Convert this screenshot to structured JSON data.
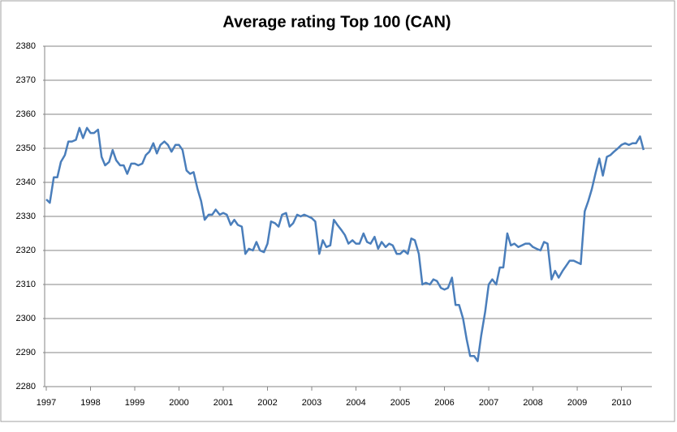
{
  "chart_data": {
    "type": "line",
    "title": "Average rating Top 100 (CAN)",
    "x": [
      1997,
      1997.08,
      1997.17,
      1997.25,
      1997.33,
      1997.42,
      1997.5,
      1997.58,
      1997.67,
      1997.75,
      1997.83,
      1997.92,
      1998,
      1998.08,
      1998.17,
      1998.25,
      1998.33,
      1998.42,
      1998.5,
      1998.58,
      1998.67,
      1998.75,
      1998.83,
      1998.92,
      1999,
      1999.08,
      1999.17,
      1999.25,
      1999.33,
      1999.42,
      1999.5,
      1999.58,
      1999.67,
      1999.75,
      1999.83,
      1999.92,
      2000,
      2000.08,
      2000.17,
      2000.25,
      2000.33,
      2000.42,
      2000.5,
      2000.58,
      2000.67,
      2000.75,
      2000.83,
      2000.92,
      2001,
      2001.08,
      2001.17,
      2001.25,
      2001.33,
      2001.42,
      2001.5,
      2001.58,
      2001.67,
      2001.75,
      2001.83,
      2001.92,
      2002,
      2002.08,
      2002.17,
      2002.25,
      2002.33,
      2002.42,
      2002.5,
      2002.58,
      2002.67,
      2002.75,
      2002.83,
      2002.92,
      2003,
      2003.08,
      2003.17,
      2003.25,
      2003.33,
      2003.42,
      2003.5,
      2003.58,
      2003.67,
      2003.75,
      2003.83,
      2003.92,
      2004,
      2004.08,
      2004.17,
      2004.25,
      2004.33,
      2004.42,
      2004.5,
      2004.58,
      2004.67,
      2004.75,
      2004.83,
      2004.92,
      2005,
      2005.08,
      2005.17,
      2005.25,
      2005.33,
      2005.42,
      2005.5,
      2005.58,
      2005.67,
      2005.75,
      2005.83,
      2005.92,
      2006,
      2006.08,
      2006.17,
      2006.25,
      2006.33,
      2006.42,
      2006.5,
      2006.58,
      2006.67,
      2006.75,
      2006.83,
      2006.92,
      2007,
      2007.08,
      2007.17,
      2007.25,
      2007.33,
      2007.42,
      2007.5,
      2007.58,
      2007.67,
      2007.75,
      2007.83,
      2007.92,
      2008,
      2008.08,
      2008.17,
      2008.25,
      2008.33,
      2008.42,
      2008.5,
      2008.58,
      2008.67,
      2008.75,
      2008.83,
      2008.92,
      2009,
      2009.08,
      2009.17,
      2009.25,
      2009.33,
      2009.42,
      2009.5,
      2009.58,
      2009.67,
      2009.75,
      2009.83,
      2009.92,
      2010,
      2010.08,
      2010.17,
      2010.25,
      2010.33,
      2010.42,
      2010.5
    ],
    "series": [
      {
        "name": "Average rating",
        "color": "#4a7ebb",
        "values": [
          2335,
          2334,
          2341.5,
          2341.5,
          2346,
          2348,
          2352,
          2352,
          2352.5,
          2356,
          2353,
          2356,
          2354.5,
          2354.5,
          2355.5,
          2347.5,
          2345,
          2346,
          2349.5,
          2346.5,
          2345,
          2345,
          2342.5,
          2345.5,
          2345.5,
          2345,
          2345.5,
          2348,
          2349,
          2351.5,
          2348.5,
          2351,
          2352,
          2351,
          2349,
          2351,
          2351,
          2349.5,
          2343.5,
          2342.5,
          2343,
          2338,
          2334.5,
          2329,
          2330.5,
          2330.5,
          2332,
          2330.5,
          2331,
          2330.5,
          2327.5,
          2329,
          2327.5,
          2327,
          2319,
          2320.5,
          2320,
          2322.5,
          2320,
          2319.5,
          2322,
          2328.5,
          2328,
          2327,
          2330.5,
          2331,
          2327,
          2328,
          2330.5,
          2330,
          2330.5,
          2330,
          2329.5,
          2328.5,
          2319,
          2323,
          2321,
          2321.5,
          2329,
          2327.5,
          2326,
          2324.5,
          2322,
          2323,
          2322,
          2322,
          2325,
          2322.5,
          2322,
          2324,
          2320.5,
          2322.5,
          2321,
          2322,
          2321.5,
          2319,
          2319,
          2320,
          2319,
          2323.5,
          2323,
          2319,
          2310,
          2310.5,
          2310,
          2311.5,
          2311,
          2309,
          2308.5,
          2309,
          2312,
          2304,
          2304,
          2300,
          2294,
          2289,
          2289,
          2287.5,
          2295,
          2302,
          2310,
          2311.5,
          2310,
          2315,
          2315,
          2325,
          2321.5,
          2322,
          2321,
          2321.5,
          2322,
          2322,
          2321,
          2320.5,
          2320,
          2322.5,
          2322,
          2311.5,
          2314,
          2312,
          2314,
          2315.5,
          2317,
          2317,
          2316.5,
          2316,
          2331.5,
          2334.5,
          2338,
          2343,
          2347,
          2342,
          2347.5,
          2348,
          2349,
          2350,
          2351,
          2351.5,
          2351,
          2351.5,
          2351.5,
          2353.5,
          2349.5
        ]
      }
    ],
    "xlim": [
      1997,
      2010.65
    ],
    "xticks": [
      1997,
      1998,
      1999,
      2000,
      2001,
      2002,
      2003,
      2004,
      2005,
      2006,
      2007,
      2008,
      2009,
      2010
    ],
    "ylim": [
      2280,
      2380
    ],
    "yticks": [
      2280,
      2290,
      2300,
      2310,
      2320,
      2330,
      2340,
      2350,
      2360,
      2370,
      2380
    ],
    "grid": true
  }
}
